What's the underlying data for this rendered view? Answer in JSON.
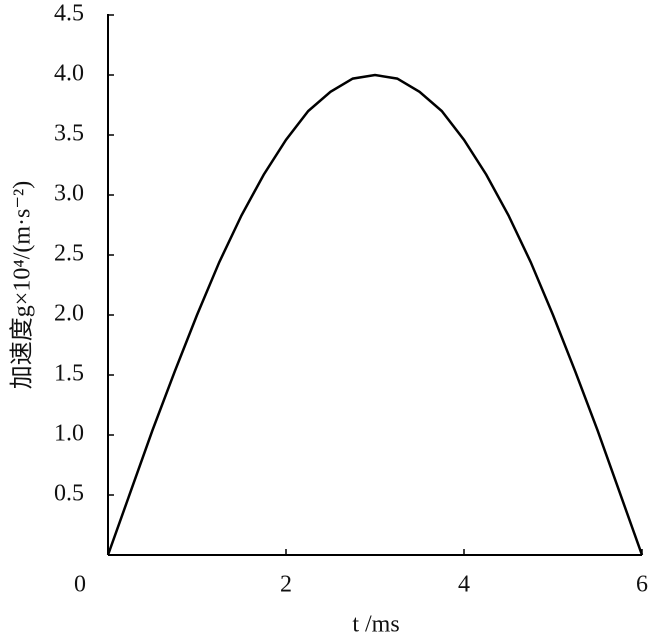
{
  "chart_data": {
    "type": "line",
    "xlabel": "t /ms",
    "ylabel": "加速度g×10⁴/(m·s⁻²)",
    "x": [
      0,
      0.25,
      0.5,
      0.75,
      1,
      1.25,
      1.5,
      1.75,
      2,
      2.25,
      2.5,
      2.75,
      3,
      3.25,
      3.5,
      3.75,
      4,
      4.25,
      4.5,
      4.75,
      5,
      5.25,
      5.5,
      5.75,
      6
    ],
    "series": [
      {
        "color": "#000000",
        "values": [
          0,
          0.52,
          1.04,
          1.53,
          2.0,
          2.44,
          2.83,
          3.17,
          3.46,
          3.7,
          3.86,
          3.97,
          4.0,
          3.97,
          3.86,
          3.7,
          3.46,
          3.17,
          2.83,
          2.44,
          2.0,
          1.53,
          1.04,
          0.52,
          0
        ]
      }
    ],
    "xlim": [
      0,
      6
    ],
    "xticks": [
      0,
      2,
      4,
      6
    ],
    "ylim": [
      0,
      4.5
    ],
    "yticks": [
      0.5,
      {
        "value": 1,
        "label": "1.0"
      },
      1.5,
      {
        "value": 2,
        "label": "2.0"
      },
      2.5,
      {
        "value": 3,
        "label": "3.0"
      },
      3.5,
      {
        "value": 4,
        "label": "4.0"
      },
      4.5
    ]
  }
}
